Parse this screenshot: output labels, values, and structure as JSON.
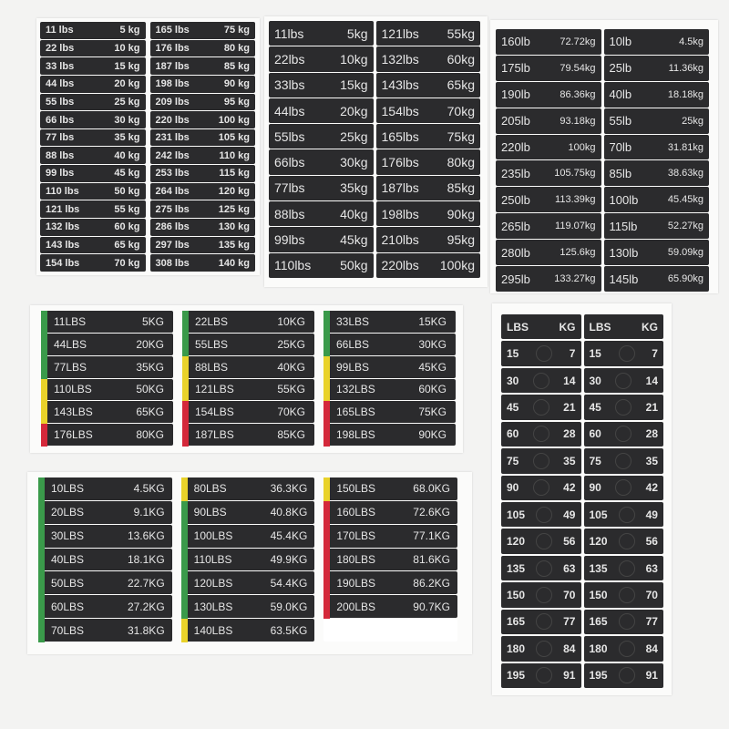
{
  "colors": {
    "green": "#3a9a4a",
    "yellow": "#e9d22a",
    "red": "#d4283a",
    "label": "#2b2b2d"
  },
  "sheets": [
    {
      "id": "s1",
      "cols": [
        [
          [
            "11 lbs",
            "5 kg"
          ],
          [
            "22 lbs",
            "10 kg"
          ],
          [
            "33 lbs",
            "15 kg"
          ],
          [
            "44 lbs",
            "20 kg"
          ],
          [
            "55 lbs",
            "25 kg"
          ],
          [
            "66 lbs",
            "30 kg"
          ],
          [
            "77 lbs",
            "35 kg"
          ],
          [
            "88 lbs",
            "40 kg"
          ],
          [
            "99 lbs",
            "45 kg"
          ],
          [
            "110 lbs",
            "50 kg"
          ],
          [
            "121 lbs",
            "55 kg"
          ],
          [
            "132 lbs",
            "60 kg"
          ],
          [
            "143 lbs",
            "65 kg"
          ],
          [
            "154 lbs",
            "70 kg"
          ]
        ],
        [
          [
            "165 lbs",
            "75 kg"
          ],
          [
            "176 lbs",
            "80 kg"
          ],
          [
            "187 lbs",
            "85 kg"
          ],
          [
            "198 lbs",
            "90 kg"
          ],
          [
            "209 lbs",
            "95 kg"
          ],
          [
            "220 lbs",
            "100 kg"
          ],
          [
            "231 lbs",
            "105 kg"
          ],
          [
            "242 lbs",
            "110 kg"
          ],
          [
            "253 lbs",
            "115 kg"
          ],
          [
            "264 lbs",
            "120 kg"
          ],
          [
            "275 lbs",
            "125 kg"
          ],
          [
            "286 lbs",
            "130 kg"
          ],
          [
            "297 lbs",
            "135 kg"
          ],
          [
            "308 lbs",
            "140 kg"
          ]
        ]
      ]
    },
    {
      "id": "s2",
      "cols": [
        [
          [
            "11lbs",
            "5kg"
          ],
          [
            "22lbs",
            "10kg"
          ],
          [
            "33lbs",
            "15kg"
          ],
          [
            "44lbs",
            "20kg"
          ],
          [
            "55lbs",
            "25kg"
          ],
          [
            "66lbs",
            "30kg"
          ],
          [
            "77lbs",
            "35kg"
          ],
          [
            "88lbs",
            "40kg"
          ],
          [
            "99lbs",
            "45kg"
          ],
          [
            "110lbs",
            "50kg"
          ]
        ],
        [
          [
            "121lbs",
            "55kg"
          ],
          [
            "132lbs",
            "60kg"
          ],
          [
            "143lbs",
            "65kg"
          ],
          [
            "154lbs",
            "70kg"
          ],
          [
            "165lbs",
            "75kg"
          ],
          [
            "176lbs",
            "80kg"
          ],
          [
            "187lbs",
            "85kg"
          ],
          [
            "198lbs",
            "90kg"
          ],
          [
            "210lbs",
            "95kg"
          ],
          [
            "220lbs",
            "100kg"
          ]
        ]
      ]
    },
    {
      "id": "s3",
      "cols": [
        [
          [
            "160lb",
            "72.72kg"
          ],
          [
            "175lb",
            "79.54kg"
          ],
          [
            "190lb",
            "86.36kg"
          ],
          [
            "205lb",
            "93.18kg"
          ],
          [
            "220lb",
            "100kg"
          ],
          [
            "235lb",
            "105.75kg"
          ],
          [
            "250lb",
            "113.39kg"
          ],
          [
            "265lb",
            "119.07kg"
          ],
          [
            "280lb",
            "125.6kg"
          ],
          [
            "295lb",
            "133.27kg"
          ]
        ],
        [
          [
            "10lb",
            "4.5kg"
          ],
          [
            "25lb",
            "11.36kg"
          ],
          [
            "40lb",
            "18.18kg"
          ],
          [
            "55lb",
            "25kg"
          ],
          [
            "70lb",
            "31.81kg"
          ],
          [
            "85lb",
            "38.63kg"
          ],
          [
            "100lb",
            "45.45kg"
          ],
          [
            "115lb",
            "52.27kg"
          ],
          [
            "130lb",
            "59.09kg"
          ],
          [
            "145lb",
            "65.90kg"
          ]
        ]
      ]
    },
    {
      "id": "s4",
      "cols": [
        [
          [
            "11LBS",
            "5KG"
          ],
          [
            "44LBS",
            "20KG"
          ],
          [
            "77LBS",
            "35KG"
          ],
          [
            "110LBS",
            "50KG"
          ],
          [
            "143LBS",
            "65KG"
          ],
          [
            "176LBS",
            "80KG"
          ]
        ],
        [
          [
            "22LBS",
            "10KG"
          ],
          [
            "55LBS",
            "25KG"
          ],
          [
            "88LBS",
            "40KG"
          ],
          [
            "121LBS",
            "55KG"
          ],
          [
            "154LBS",
            "70KG"
          ],
          [
            "187LBS",
            "85KG"
          ]
        ],
        [
          [
            "33LBS",
            "15KG"
          ],
          [
            "66LBS",
            "30KG"
          ],
          [
            "99LBS",
            "45KG"
          ],
          [
            "132LBS",
            "60KG"
          ],
          [
            "165LBS",
            "75KG"
          ],
          [
            "198LBS",
            "90KG"
          ]
        ]
      ],
      "strips": [
        [
          "green",
          "green",
          "green",
          "yellow",
          "yellow",
          "red"
        ],
        [
          "green",
          "green",
          "yellow",
          "yellow",
          "red",
          "red"
        ],
        [
          "green",
          "green",
          "yellow",
          "yellow",
          "red",
          "red"
        ]
      ]
    },
    {
      "id": "s5",
      "cols": [
        [
          [
            "10LBS",
            "4.5KG"
          ],
          [
            "20LBS",
            "9.1KG"
          ],
          [
            "30LBS",
            "13.6KG"
          ],
          [
            "40LBS",
            "18.1KG"
          ],
          [
            "50LBS",
            "22.7KG"
          ],
          [
            "60LBS",
            "27.2KG"
          ],
          [
            "70LBS",
            "31.8KG"
          ]
        ],
        [
          [
            "80LBS",
            "36.3KG"
          ],
          [
            "90LBS",
            "40.8KG"
          ],
          [
            "100LBS",
            "45.4KG"
          ],
          [
            "110LBS",
            "49.9KG"
          ],
          [
            "120LBS",
            "54.4KG"
          ],
          [
            "130LBS",
            "59.0KG"
          ],
          [
            "140LBS",
            "63.5KG"
          ]
        ],
        [
          [
            "150LBS",
            "68.0KG"
          ],
          [
            "160LBS",
            "72.6KG"
          ],
          [
            "170LBS",
            "77.1KG"
          ],
          [
            "180LBS",
            "81.6KG"
          ],
          [
            "190LBS",
            "86.2KG"
          ],
          [
            "200LBS",
            "90.7KG"
          ],
          [
            "",
            ""
          ]
        ]
      ],
      "strips": [
        [
          "green",
          "green",
          "green",
          "green",
          "green",
          "green",
          "green"
        ],
        [
          "yellow",
          "green",
          "green",
          "green",
          "green",
          "green",
          "yellow"
        ],
        [
          "yellow",
          "red",
          "red",
          "red",
          "red",
          "red",
          "yellow"
        ]
      ]
    },
    {
      "id": "s6",
      "cols": [
        [
          [
            "LBS",
            "KG"
          ],
          [
            "15",
            "7"
          ],
          [
            "30",
            "14"
          ],
          [
            "45",
            "21"
          ],
          [
            "60",
            "28"
          ],
          [
            "75",
            "35"
          ],
          [
            "90",
            "42"
          ],
          [
            "105",
            "49"
          ],
          [
            "120",
            "56"
          ],
          [
            "135",
            "63"
          ],
          [
            "150",
            "70"
          ],
          [
            "165",
            "77"
          ],
          [
            "180",
            "84"
          ],
          [
            "195",
            "91"
          ]
        ],
        [
          [
            "LBS",
            "KG"
          ],
          [
            "15",
            "7"
          ],
          [
            "30",
            "14"
          ],
          [
            "45",
            "21"
          ],
          [
            "60",
            "28"
          ],
          [
            "75",
            "35"
          ],
          [
            "90",
            "42"
          ],
          [
            "105",
            "49"
          ],
          [
            "120",
            "56"
          ],
          [
            "135",
            "63"
          ],
          [
            "150",
            "70"
          ],
          [
            "165",
            "77"
          ],
          [
            "180",
            "84"
          ],
          [
            "195",
            "91"
          ]
        ]
      ]
    }
  ]
}
